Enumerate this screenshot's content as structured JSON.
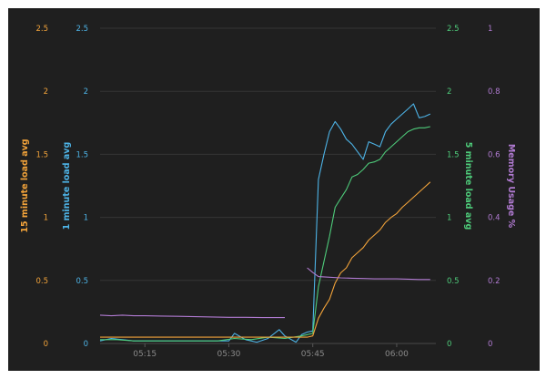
{
  "chart_data": {
    "type": "line",
    "x_ticks": [
      "05:15",
      "05:30",
      "05:45",
      "06:00"
    ],
    "x_range": [
      "05:07",
      "06:07"
    ],
    "axes": {
      "load15": {
        "label": "15 minute load avg",
        "ticks": [
          "0",
          "0.5",
          "1",
          "1.5",
          "2",
          "2.5"
        ],
        "range": [
          0,
          2.5
        ],
        "color": "#f2a33a",
        "side": "left"
      },
      "load1": {
        "label": "1 minute load avg",
        "ticks": [
          "0",
          "0.5",
          "1",
          "1.5",
          "2",
          "2.5"
        ],
        "range": [
          0,
          2.5
        ],
        "color": "#4db3e6",
        "side": "left"
      },
      "load5": {
        "label": "5 minute load avg",
        "ticks": [
          "0",
          "0.5",
          "1",
          "1.5",
          "2",
          "2.5"
        ],
        "range": [
          0,
          2.5
        ],
        "color": "#4ecb7a",
        "side": "right"
      },
      "memory": {
        "label": "Memory Usage %",
        "ticks": [
          "0",
          "0.2",
          "0.4",
          "0.6",
          "0.8",
          "1"
        ],
        "range": [
          0,
          1
        ],
        "color": "#b07ad1",
        "side": "right"
      }
    },
    "grid": true,
    "background": "#1f1f1f",
    "series": [
      {
        "name": "1 minute load avg",
        "axis": "load1",
        "color": "#4db3e6",
        "x": [
          "05:07",
          "05:09",
          "05:11",
          "05:13",
          "05:15",
          "05:18",
          "05:21",
          "05:24",
          "05:27",
          "05:30",
          "05:31",
          "05:33",
          "05:35",
          "05:37",
          "05:39",
          "05:40",
          "05:42",
          "05:43",
          "05:44",
          "05:45",
          "05:46",
          "05:47",
          "05:48",
          "05:49",
          "05:50",
          "05:51",
          "05:52",
          "05:53",
          "05:54",
          "05:55",
          "05:56",
          "05:57",
          "05:58",
          "05:59",
          "06:00",
          "06:01",
          "06:02",
          "06:03",
          "06:04",
          "06:05",
          "06:06"
        ],
        "y": [
          0.02,
          0.04,
          0.03,
          0.02,
          0.02,
          0.02,
          0.02,
          0.02,
          0.02,
          0.02,
          0.08,
          0.03,
          0.01,
          0.04,
          0.11,
          0.06,
          0.01,
          0.07,
          0.09,
          0.1,
          1.3,
          1.5,
          1.68,
          1.76,
          1.7,
          1.62,
          1.58,
          1.52,
          1.46,
          1.6,
          1.58,
          1.56,
          1.68,
          1.74,
          1.78,
          1.82,
          1.86,
          1.9,
          1.79,
          1.8,
          1.82
        ]
      },
      {
        "name": "5 minute load avg",
        "axis": "load5",
        "color": "#4ecb7a",
        "x": [
          "05:07",
          "05:10",
          "05:13",
          "05:16",
          "05:19",
          "05:22",
          "05:25",
          "05:28",
          "05:31",
          "05:34",
          "05:37",
          "05:40",
          "05:43",
          "05:44",
          "05:45",
          "05:46",
          "05:47",
          "05:48",
          "05:49",
          "05:50",
          "05:51",
          "05:52",
          "05:53",
          "05:54",
          "05:55",
          "05:56",
          "05:57",
          "05:58",
          "05:59",
          "06:00",
          "06:01",
          "06:02",
          "06:03",
          "06:04",
          "06:05",
          "06:06"
        ],
        "y": [
          0.03,
          0.03,
          0.02,
          0.02,
          0.02,
          0.02,
          0.02,
          0.02,
          0.04,
          0.03,
          0.05,
          0.04,
          0.06,
          0.07,
          0.08,
          0.45,
          0.65,
          0.85,
          1.08,
          1.15,
          1.22,
          1.32,
          1.34,
          1.38,
          1.43,
          1.44,
          1.46,
          1.52,
          1.56,
          1.6,
          1.64,
          1.68,
          1.7,
          1.71,
          1.71,
          1.72
        ]
      },
      {
        "name": "15 minute load avg",
        "axis": "load15",
        "color": "#f2a33a",
        "x": [
          "05:07",
          "05:10",
          "05:15",
          "05:20",
          "05:25",
          "05:30",
          "05:35",
          "05:40",
          "05:43",
          "05:44",
          "05:45",
          "05:46",
          "05:47",
          "05:48",
          "05:49",
          "05:50",
          "05:51",
          "05:52",
          "05:53",
          "05:54",
          "05:55",
          "05:56",
          "05:57",
          "05:58",
          "05:59",
          "06:00",
          "06:01",
          "06:02",
          "06:03",
          "06:04",
          "06:05",
          "06:06"
        ],
        "y": [
          0.05,
          0.05,
          0.05,
          0.05,
          0.05,
          0.05,
          0.05,
          0.05,
          0.05,
          0.05,
          0.06,
          0.2,
          0.28,
          0.35,
          0.48,
          0.56,
          0.6,
          0.68,
          0.72,
          0.76,
          0.82,
          0.86,
          0.9,
          0.96,
          1.0,
          1.03,
          1.08,
          1.12,
          1.16,
          1.2,
          1.24,
          1.28
        ]
      },
      {
        "name": "Memory Usage %",
        "axis": "memory",
        "color": "#b07ad1",
        "x": [
          "05:07",
          "05:09",
          "05:11",
          "05:13",
          "05:15",
          "05:18",
          "05:21",
          "05:24",
          "05:27",
          "05:30",
          "05:33",
          "05:36",
          "05:39",
          "05:40"
        ],
        "y": [
          0.09,
          0.088,
          0.09,
          0.088,
          0.088,
          0.087,
          0.086,
          0.085,
          0.084,
          0.083,
          0.083,
          0.082,
          0.082,
          0.082
        ],
        "x2": [
          "05:44",
          "05:45",
          "05:46",
          "05:48",
          "05:50",
          "05:52",
          "05:54",
          "05:56",
          "05:58",
          "06:00",
          "06:02",
          "06:04",
          "06:06"
        ],
        "y2": [
          0.24,
          0.225,
          0.212,
          0.21,
          0.208,
          0.207,
          0.206,
          0.205,
          0.205,
          0.205,
          0.204,
          0.203,
          0.203
        ]
      }
    ]
  }
}
